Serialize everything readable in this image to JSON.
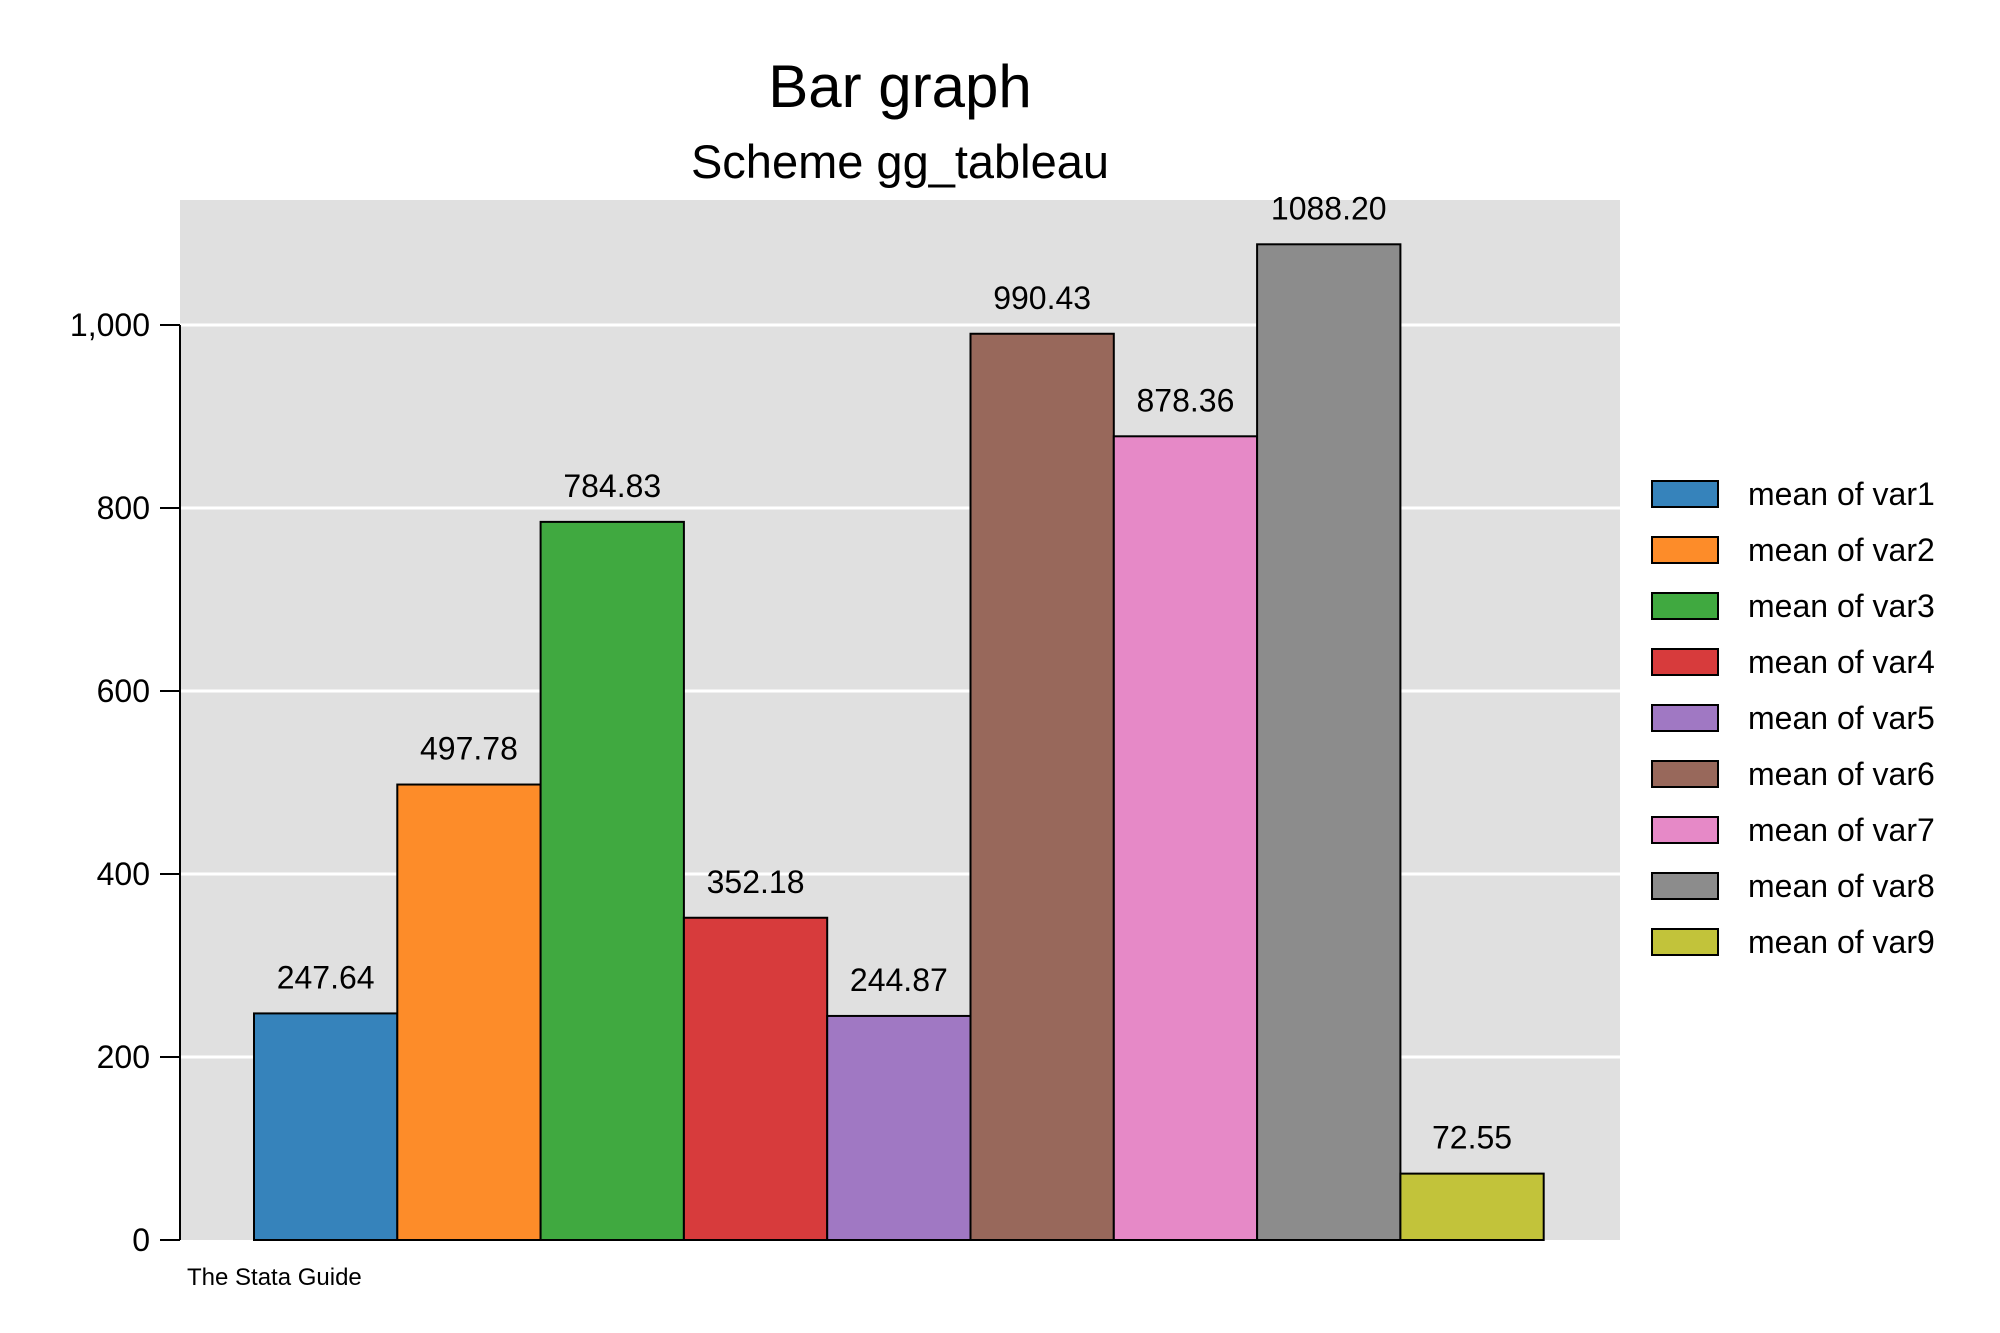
{
  "chart_data": {
    "type": "bar",
    "title": "Bar graph",
    "subtitle": "Scheme gg_tableau",
    "note": "The Stata Guide",
    "ylim": [
      0,
      1135
    ],
    "yticks": [
      0,
      200,
      400,
      600,
      800,
      1000
    ],
    "ytick_labels": [
      "0",
      "200",
      "400",
      "600",
      "800",
      "1,000"
    ],
    "grid": true,
    "legend_position": "right",
    "series": [
      {
        "name": "mean of var1",
        "value": 247.64,
        "label": "247.64",
        "color": "#3683bb"
      },
      {
        "name": "mean of var2",
        "value": 497.78,
        "label": "497.78",
        "color": "#fd8c29"
      },
      {
        "name": "mean of var3",
        "value": 784.83,
        "label": "784.83",
        "color": "#40a940"
      },
      {
        "name": "mean of var4",
        "value": 352.18,
        "label": "352.18",
        "color": "#d73b3c"
      },
      {
        "name": "mean of var5",
        "value": 244.87,
        "label": "244.87",
        "color": "#a078c3"
      },
      {
        "name": "mean of var6",
        "value": 990.43,
        "label": "990.43",
        "color": "#98685b"
      },
      {
        "name": "mean of var7",
        "value": 878.36,
        "label": "878.36",
        "color": "#e689c7"
      },
      {
        "name": "mean of var8",
        "value": 1088.2,
        "label": "1088.20",
        "color": "#8c8c8c"
      },
      {
        "name": "mean of var9",
        "value": 72.55,
        "label": "72.55",
        "color": "#c2c33a"
      }
    ],
    "colors": {
      "plot_background": "#e0e0e0",
      "gridline": "#ffffff",
      "bar_outline": "#000000"
    }
  }
}
